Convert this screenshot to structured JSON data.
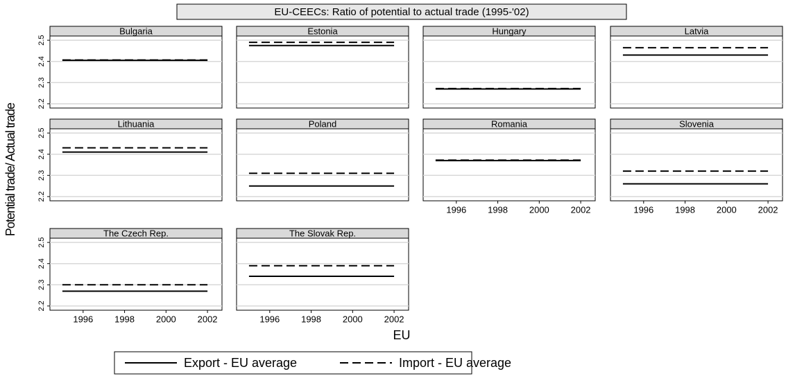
{
  "title": "EU-CEECs: Ratio of  potential to actual trade (1995-'02)",
  "x_label": "EU",
  "y_label": "Potential trade/ Actual trade",
  "chart_data": [
    {
      "type": "line",
      "title": "Bulgaria",
      "x": [
        1995,
        2002
      ],
      "xlim": [
        1994.4,
        2002.7
      ],
      "ylim": [
        2.18,
        2.52
      ],
      "yticks": [
        2.2,
        2.3,
        2.4,
        2.5
      ],
      "grid": true,
      "series": [
        {
          "name": "Export - EU average",
          "color": "#000000",
          "style": "solid",
          "values": [
            2.405,
            2.405
          ]
        },
        {
          "name": "Import - EU average",
          "color": "#000000",
          "style": "dashed",
          "values": [
            2.407,
            2.407
          ]
        }
      ]
    },
    {
      "type": "line",
      "title": "Estonia",
      "x": [
        1995,
        2002
      ],
      "xlim": [
        1994.4,
        2002.7
      ],
      "ylim": [
        2.18,
        2.52
      ],
      "yticks": [
        2.2,
        2.3,
        2.4,
        2.5
      ],
      "grid": true,
      "series": [
        {
          "name": "Export - EU average",
          "color": "#000000",
          "style": "solid",
          "values": [
            2.475,
            2.475
          ]
        },
        {
          "name": "Import - EU average",
          "color": "#000000",
          "style": "dashed",
          "values": [
            2.49,
            2.49
          ]
        }
      ]
    },
    {
      "type": "line",
      "title": "Hungary",
      "x": [
        1995,
        2002
      ],
      "xlim": [
        1994.4,
        2002.7
      ],
      "ylim": [
        2.18,
        2.52
      ],
      "yticks": [
        2.2,
        2.3,
        2.4,
        2.5
      ],
      "grid": true,
      "series": [
        {
          "name": "Export - EU average",
          "color": "#000000",
          "style": "solid",
          "values": [
            2.27,
            2.27
          ]
        },
        {
          "name": "Import - EU average",
          "color": "#000000",
          "style": "dashed",
          "values": [
            2.272,
            2.272
          ]
        }
      ]
    },
    {
      "type": "line",
      "title": "Latvia",
      "x": [
        1995,
        2002
      ],
      "xlim": [
        1994.4,
        2002.7
      ],
      "ylim": [
        2.18,
        2.52
      ],
      "yticks": [
        2.2,
        2.3,
        2.4,
        2.5
      ],
      "grid": true,
      "series": [
        {
          "name": "Export - EU average",
          "color": "#000000",
          "style": "solid",
          "values": [
            2.43,
            2.43
          ]
        },
        {
          "name": "Import - EU average",
          "color": "#000000",
          "style": "dashed",
          "values": [
            2.465,
            2.465
          ]
        }
      ]
    },
    {
      "type": "line",
      "title": "Lithuania",
      "x": [
        1995,
        2002
      ],
      "xlim": [
        1994.4,
        2002.7
      ],
      "ylim": [
        2.18,
        2.52
      ],
      "yticks": [
        2.2,
        2.3,
        2.4,
        2.5
      ],
      "grid": true,
      "series": [
        {
          "name": "Export - EU average",
          "color": "#000000",
          "style": "solid",
          "values": [
            2.41,
            2.41
          ]
        },
        {
          "name": "Import - EU average",
          "color": "#000000",
          "style": "dashed",
          "values": [
            2.43,
            2.43
          ]
        }
      ]
    },
    {
      "type": "line",
      "title": "Poland",
      "x": [
        1995,
        2002
      ],
      "xlim": [
        1994.4,
        2002.7
      ],
      "ylim": [
        2.18,
        2.52
      ],
      "yticks": [
        2.2,
        2.3,
        2.4,
        2.5
      ],
      "grid": true,
      "series": [
        {
          "name": "Export - EU average",
          "color": "#000000",
          "style": "solid",
          "values": [
            2.25,
            2.25
          ]
        },
        {
          "name": "Import - EU average",
          "color": "#000000",
          "style": "dashed",
          "values": [
            2.31,
            2.31
          ]
        }
      ]
    },
    {
      "type": "line",
      "title": "Romania",
      "x": [
        1995,
        2002
      ],
      "xlim": [
        1994.4,
        2002.7
      ],
      "ylim": [
        2.18,
        2.52
      ],
      "yticks": [
        2.2,
        2.3,
        2.4,
        2.5
      ],
      "xticks": [
        1996,
        1998,
        2000,
        2002
      ],
      "grid": true,
      "series": [
        {
          "name": "Export - EU average",
          "color": "#000000",
          "style": "solid",
          "values": [
            2.37,
            2.37
          ]
        },
        {
          "name": "Import - EU average",
          "color": "#000000",
          "style": "dashed",
          "values": [
            2.372,
            2.372
          ]
        }
      ]
    },
    {
      "type": "line",
      "title": "Slovenia",
      "x": [
        1995,
        2002
      ],
      "xlim": [
        1994.4,
        2002.7
      ],
      "ylim": [
        2.18,
        2.52
      ],
      "yticks": [
        2.2,
        2.3,
        2.4,
        2.5
      ],
      "xticks": [
        1996,
        1998,
        2000,
        2002
      ],
      "grid": true,
      "series": [
        {
          "name": "Export - EU average",
          "color": "#000000",
          "style": "solid",
          "values": [
            2.26,
            2.26
          ]
        },
        {
          "name": "Import - EU average",
          "color": "#000000",
          "style": "dashed",
          "values": [
            2.32,
            2.32
          ]
        }
      ]
    },
    {
      "type": "line",
      "title": "The Czech Rep.",
      "x": [
        1995,
        2002
      ],
      "xlim": [
        1994.4,
        2002.7
      ],
      "ylim": [
        2.18,
        2.52
      ],
      "yticks": [
        2.2,
        2.3,
        2.4,
        2.5
      ],
      "xticks": [
        1996,
        1998,
        2000,
        2002
      ],
      "grid": true,
      "series": [
        {
          "name": "Export - EU average",
          "color": "#000000",
          "style": "solid",
          "values": [
            2.27,
            2.27
          ]
        },
        {
          "name": "Import - EU average",
          "color": "#000000",
          "style": "dashed",
          "values": [
            2.3,
            2.3
          ]
        }
      ]
    },
    {
      "type": "line",
      "title": "The Slovak Rep.",
      "x": [
        1995,
        2002
      ],
      "xlim": [
        1994.4,
        2002.7
      ],
      "ylim": [
        2.18,
        2.52
      ],
      "yticks": [
        2.2,
        2.3,
        2.4,
        2.5
      ],
      "xticks": [
        1996,
        1998,
        2000,
        2002
      ],
      "grid": true,
      "series": [
        {
          "name": "Export - EU average",
          "color": "#000000",
          "style": "solid",
          "values": [
            2.34,
            2.34
          ]
        },
        {
          "name": "Import - EU average",
          "color": "#000000",
          "style": "dashed",
          "values": [
            2.39,
            2.39
          ]
        }
      ]
    }
  ]
}
